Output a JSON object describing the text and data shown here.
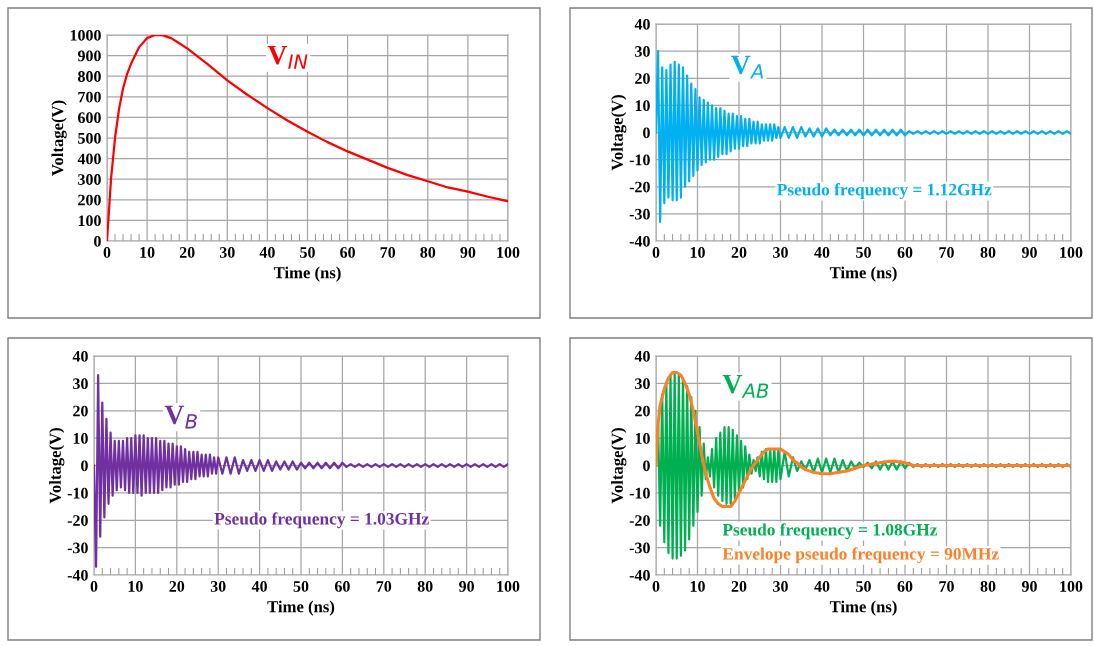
{
  "chart_data": [
    {
      "type": "line",
      "xlabel": "Time (ns)",
      "ylabel": "Voltage(V)",
      "xlim": [
        0,
        100
      ],
      "xticks": [
        0,
        10,
        20,
        30,
        40,
        50,
        60,
        70,
        80,
        90,
        100
      ],
      "ylim": [
        0,
        1000
      ],
      "yticks": [
        0,
        100,
        200,
        300,
        400,
        500,
        600,
        700,
        800,
        900,
        1000
      ],
      "grid": true,
      "legend": false,
      "series": [
        {
          "name": "V$_{IN}$",
          "color": "#ff0000",
          "x": [
            0,
            1,
            2,
            3,
            4,
            5,
            6,
            8,
            10,
            12,
            14,
            16,
            18,
            20,
            25,
            30,
            35,
            40,
            45,
            50,
            55,
            60,
            65,
            70,
            75,
            80,
            85,
            90,
            95,
            100
          ],
          "values": [
            0,
            300,
            500,
            640,
            740,
            810,
            860,
            940,
            985,
            1000,
            998,
            985,
            960,
            935,
            860,
            780,
            710,
            645,
            585,
            530,
            480,
            435,
            395,
            355,
            320,
            290,
            260,
            240,
            215,
            193
          ]
        }
      ]
    },
    {
      "type": "line",
      "xlabel": "Time (ns)",
      "ylabel": "Voltage(V)",
      "xlim": [
        0,
        100
      ],
      "xticks": [
        0,
        10,
        20,
        30,
        40,
        50,
        60,
        70,
        80,
        90,
        100
      ],
      "ylim": [
        -40,
        40
      ],
      "yticks": [
        -40,
        -30,
        -20,
        -10,
        0,
        10,
        20,
        30,
        40
      ],
      "grid": true,
      "legend": false,
      "annotations": [
        "Pseudo frequency = 1.12GHz"
      ],
      "x": [
        0,
        0.5,
        1,
        1.5,
        2,
        2.5,
        3,
        3.5,
        4,
        4.5,
        5,
        5.5,
        6,
        6.5,
        7,
        7.5,
        8,
        8.5,
        9,
        9.5,
        10,
        10.5,
        11,
        11.5,
        12,
        12.5,
        13,
        13.5,
        14,
        14.5,
        15,
        15.5,
        16,
        16.5,
        17,
        17.5,
        18,
        18.5,
        19,
        19.5,
        20,
        20.5,
        21,
        21.5,
        22,
        22.5,
        23,
        23.5,
        24,
        24.5,
        25,
        25.5,
        26,
        26.5,
        27,
        27.5,
        28,
        28.5,
        29,
        29.5,
        30,
        31,
        32,
        33,
        34,
        35,
        36,
        37,
        38,
        39,
        40,
        41,
        42,
        43,
        44,
        45,
        46,
        47,
        48,
        49,
        50,
        51,
        52,
        53,
        54,
        55,
        56,
        57,
        58,
        59,
        60,
        61,
        62,
        63,
        64,
        65,
        66,
        67,
        68,
        69,
        70,
        71,
        72,
        73,
        74,
        75,
        76,
        77,
        78,
        79,
        80,
        81,
        82,
        83,
        84,
        85,
        86,
        87,
        88,
        89,
        90,
        91,
        92,
        93,
        94,
        95,
        96,
        97,
        98,
        99,
        100
      ],
      "series": [
        {
          "name": "V$_{A}$",
          "color": "#00b0f0",
          "values": [
            0,
            30,
            -33,
            24,
            -26,
            23,
            -24,
            25,
            -25,
            26,
            -25,
            25,
            -24,
            24,
            -20,
            21,
            -18,
            18,
            -16,
            16,
            -14,
            13,
            -12,
            12,
            -11,
            11,
            -10,
            10,
            -10,
            9,
            -9,
            9,
            -8,
            8,
            -8,
            7,
            -7,
            7,
            -6,
            6,
            -6,
            6,
            -5,
            5,
            -5,
            5,
            -4,
            4,
            -4,
            4,
            -4,
            3,
            -3,
            3,
            -3,
            3,
            -3,
            3,
            -2,
            2,
            -2,
            2,
            -2,
            2,
            -2,
            2,
            -1.5,
            1.5,
            -1.5,
            1.5,
            -1.5,
            1.5,
            -1,
            1,
            -1,
            1,
            -1,
            1,
            -1,
            1,
            -1,
            1,
            -1,
            1,
            -1,
            1,
            -1,
            1,
            -1,
            1,
            -1,
            0.5,
            -0.5,
            0.5,
            -0.5,
            0.5,
            -0.5,
            0.5,
            -0.5,
            0.5,
            -0.5,
            0.5,
            -0.5,
            0.5,
            -0.5,
            0.5,
            -0.5,
            0.5,
            -0.5,
            0.5,
            -0.5,
            0.5,
            -0.5,
            0.5,
            -0.5,
            0.5,
            -0.5,
            0.5,
            -0.5,
            0.5,
            -0.5,
            0.5,
            -0.5,
            0.5,
            -0.5,
            0.5,
            -0.5,
            0.5,
            -0.5,
            0.5,
            -0.5
          ]
        }
      ]
    },
    {
      "type": "line",
      "xlabel": "Time (ns)",
      "ylabel": "Voltage(V)",
      "xlim": [
        0,
        100
      ],
      "xticks": [
        0,
        10,
        20,
        30,
        40,
        50,
        60,
        70,
        80,
        90,
        100
      ],
      "ylim": [
        -40,
        40
      ],
      "yticks": [
        -40,
        -30,
        -20,
        -10,
        0,
        10,
        20,
        30,
        40
      ],
      "grid": true,
      "legend": false,
      "annotations": [
        "Pseudo frequency = 1.03GHz"
      ],
      "x": [
        0,
        0.5,
        1,
        1.5,
        2,
        2.5,
        3,
        3.5,
        4,
        4.5,
        5,
        5.5,
        6,
        6.5,
        7,
        7.5,
        8,
        8.5,
        9,
        9.5,
        10,
        10.5,
        11,
        11.5,
        12,
        12.5,
        13,
        13.5,
        14,
        14.5,
        15,
        15.5,
        16,
        16.5,
        17,
        17.5,
        18,
        18.5,
        19,
        19.5,
        20,
        20.5,
        21,
        21.5,
        22,
        22.5,
        23,
        23.5,
        24,
        24.5,
        25,
        25.5,
        26,
        26.5,
        27,
        27.5,
        28,
        28.5,
        29,
        29.5,
        30,
        31,
        32,
        33,
        34,
        35,
        36,
        37,
        38,
        39,
        40,
        41,
        42,
        43,
        44,
        45,
        46,
        47,
        48,
        49,
        50,
        51,
        52,
        53,
        54,
        55,
        56,
        57,
        58,
        59,
        60,
        61,
        62,
        63,
        64,
        65,
        66,
        67,
        68,
        69,
        70,
        71,
        72,
        73,
        74,
        75,
        76,
        77,
        78,
        79,
        80,
        81,
        82,
        83,
        84,
        85,
        86,
        87,
        88,
        89,
        90,
        91,
        92,
        93,
        94,
        95,
        96,
        97,
        98,
        99,
        100
      ],
      "series": [
        {
          "name": "V$_{B}$",
          "color": "#7030a0",
          "values": [
            0,
            -37,
            33,
            -26,
            23,
            -19,
            17,
            -14,
            12,
            -11,
            9,
            -9,
            9,
            -8,
            9,
            -9,
            10,
            -10,
            10,
            -10,
            11,
            -10,
            11,
            -11,
            11,
            -10,
            10,
            -10,
            10,
            -10,
            10,
            -10,
            9,
            -9,
            9,
            -8,
            8,
            -8,
            8,
            -7,
            7,
            -7,
            7,
            -6,
            6,
            -6,
            5,
            -5,
            5,
            -5,
            5,
            -4,
            4,
            -4,
            4,
            -4,
            4,
            -3,
            3,
            -3,
            3,
            -3,
            3,
            -3,
            3,
            -3,
            2,
            -2,
            2,
            -2,
            2,
            -2,
            2,
            -2,
            1.5,
            -1.5,
            1.5,
            -1.5,
            1.5,
            -1.5,
            1,
            -1,
            1,
            -1,
            1,
            -1,
            1,
            -1,
            1,
            -1,
            1,
            -0.5,
            0.5,
            -0.5,
            0.5,
            -0.5,
            0.5,
            -0.5,
            0.5,
            -0.5,
            0.5,
            -0.5,
            0.5,
            -0.5,
            0.5,
            -0.5,
            0.5,
            -0.5,
            0.5,
            -0.5,
            0.5,
            -0.5,
            0.5,
            -0.5,
            0.5,
            -0.5,
            0.5,
            -0.5,
            0.5,
            -0.5,
            0.5,
            -0.5,
            0.5,
            -0.5,
            0.5,
            -0.5,
            0.5,
            -0.5,
            0.5,
            -0.5,
            0.5
          ]
        }
      ]
    },
    {
      "type": "line",
      "xlabel": "Time (ns)",
      "ylabel": "Voltage(V)",
      "xlim": [
        0,
        100
      ],
      "xticks": [
        0,
        10,
        20,
        30,
        40,
        50,
        60,
        70,
        80,
        90,
        100
      ],
      "ylim": [
        -40,
        40
      ],
      "yticks": [
        -40,
        -30,
        -20,
        -10,
        0,
        10,
        20,
        30,
        40
      ],
      "grid": true,
      "legend": false,
      "annotations": [
        "Pseudo frequency = 1.08GHz",
        "Envelope pseudo frequency = 90MHz"
      ],
      "x": [
        0,
        0.5,
        1,
        1.5,
        2,
        2.5,
        3,
        3.5,
        4,
        4.5,
        5,
        5.5,
        6,
        6.5,
        7,
        7.5,
        8,
        8.5,
        9,
        9.5,
        10,
        10.5,
        11,
        11.5,
        12,
        12.5,
        13,
        13.5,
        14,
        14.5,
        15,
        15.5,
        16,
        16.5,
        17,
        17.5,
        18,
        18.5,
        19,
        19.5,
        20,
        20.5,
        21,
        21.5,
        22,
        22.5,
        23,
        23.5,
        24,
        24.5,
        25,
        25.5,
        26,
        26.5,
        27,
        27.5,
        28,
        28.5,
        29,
        29.5,
        30,
        31,
        32,
        33,
        34,
        35,
        36,
        37,
        38,
        39,
        40,
        41,
        42,
        43,
        44,
        45,
        46,
        47,
        48,
        49,
        50,
        51,
        52,
        53,
        54,
        55,
        56,
        57,
        58,
        59,
        60,
        61,
        62,
        63,
        64,
        65,
        66,
        67,
        68,
        69,
        70,
        71,
        72,
        73,
        74,
        75,
        76,
        77,
        78,
        79,
        80,
        81,
        82,
        83,
        84,
        85,
        86,
        87,
        88,
        89,
        90,
        91,
        92,
        93,
        94,
        95,
        96,
        97,
        98,
        99,
        100
      ],
      "series": [
        {
          "name": "V$_{AB}$",
          "color": "#00b050",
          "values": [
            0,
            15,
            -22,
            26,
            -28,
            30,
            -32,
            33,
            -34,
            34,
            -34,
            33,
            -33,
            32,
            -31,
            29,
            -27,
            25,
            -22,
            20,
            -17,
            14,
            -11,
            8,
            -5,
            3,
            -4,
            6,
            -8,
            10,
            -11,
            12,
            -13,
            14,
            -14,
            14,
            -14,
            13,
            -12,
            11,
            -10,
            9,
            -8,
            7,
            -5,
            4,
            -3,
            2,
            -2,
            3,
            -4,
            5,
            -5,
            6,
            -6,
            6,
            -6,
            6,
            -6,
            6,
            -5,
            5,
            -4,
            3,
            -2,
            1.5,
            -1.5,
            2,
            -2.5,
            2.5,
            -2.5,
            2.5,
            -2.5,
            2.5,
            -2.5,
            2,
            -2,
            1.5,
            -1,
            1,
            -0.5,
            1,
            -1,
            1.5,
            -1.5,
            1.5,
            -1.5,
            1.5,
            -1.5,
            1.5,
            -1,
            1,
            -0.5,
            0.5,
            -0.5,
            0.5,
            -0.5,
            0.5,
            -0.5,
            0.5,
            -0.5,
            0.5,
            -0.5,
            0.5,
            -0.5,
            0.5,
            -0.5,
            0.5,
            -0.5,
            0.5,
            -0.5,
            0.5,
            -0.5,
            0.5,
            -0.5,
            0.5,
            -0.5,
            0.5,
            -0.5,
            0.5,
            -0.5,
            0.5,
            -0.5,
            0.5,
            -0.5,
            0.5,
            -0.5,
            0.5,
            -0.5,
            0.5,
            -0.5
          ]
        },
        {
          "color": "#ff7f27",
          "x": [
            0,
            0.5,
            1,
            2,
            3,
            4,
            5,
            6,
            7,
            8,
            9,
            10,
            11,
            12,
            13,
            14,
            15,
            16,
            17,
            18,
            19,
            20,
            21,
            22,
            23,
            24,
            25,
            26,
            27,
            28,
            29,
            30,
            31,
            32,
            33,
            34,
            35,
            36,
            38,
            40,
            42,
            44,
            46,
            48,
            50,
            52,
            54,
            56,
            58,
            60,
            62,
            64,
            70,
            80,
            90,
            100
          ],
          "values": [
            0,
            15,
            22,
            28,
            32,
            34,
            34,
            33,
            30,
            26,
            20,
            12,
            4,
            -3,
            -8,
            -12,
            -14,
            -15,
            -15,
            -15,
            -13,
            -10,
            -7,
            -4,
            -1,
            1,
            3,
            5,
            6,
            6,
            6,
            6,
            5,
            4,
            2,
            1,
            -0.5,
            -1.5,
            -2.5,
            -3,
            -3,
            -2.5,
            -2,
            -1,
            0,
            0.5,
            1,
            1.5,
            1.5,
            1,
            0,
            0,
            0,
            0,
            0,
            0
          ]
        }
      ]
    }
  ]
}
